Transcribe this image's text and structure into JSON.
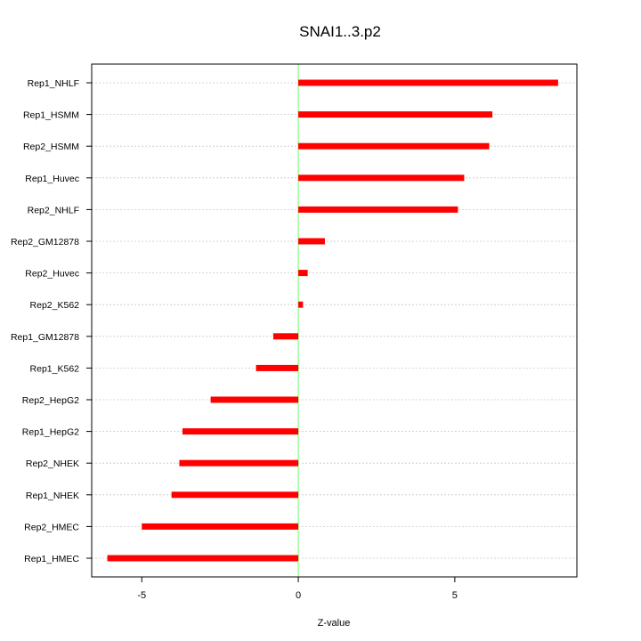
{
  "chart_data": {
    "type": "bar",
    "orientation": "horizontal",
    "title": "SNAI1..3.p2",
    "xlabel": "Z-value",
    "ylabel": "",
    "xlim": [
      -6.6,
      8.9
    ],
    "xticks": [
      -5,
      0,
      5
    ],
    "xtick_labels": [
      "-5",
      "0",
      "5"
    ],
    "categories": [
      "Rep1_NHLF",
      "Rep1_HSMM",
      "Rep2_HSMM",
      "Rep1_Huvec",
      "Rep2_NHLF",
      "Rep2_GM12878",
      "Rep2_Huvec",
      "Rep2_K562",
      "Rep1_GM12878",
      "Rep1_K562",
      "Rep2_HepG2",
      "Rep1_HepG2",
      "Rep2_NHEK",
      "Rep1_NHEK",
      "Rep2_HMEC",
      "Rep1_HMEC"
    ],
    "values": [
      8.3,
      6.2,
      6.1,
      5.3,
      5.1,
      0.85,
      0.3,
      0.15,
      -0.8,
      -1.35,
      -2.8,
      -3.7,
      -3.8,
      -4.05,
      -5.0,
      -6.1
    ],
    "bar_color": "#ff0000",
    "zero_line_color": "#80ff80",
    "grid": "horizontal dotted"
  }
}
